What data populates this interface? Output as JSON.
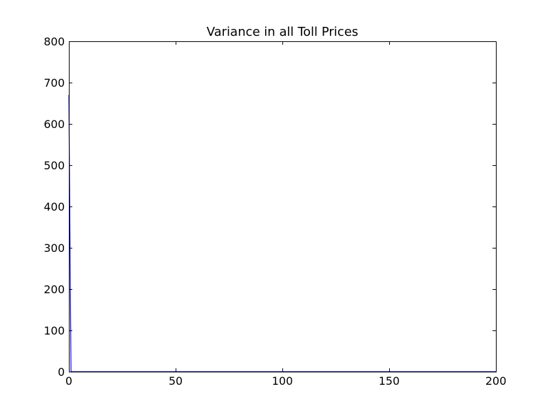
{
  "chart_data": {
    "type": "line",
    "title": "Variance in all Toll Prices",
    "xlabel": "",
    "ylabel": "",
    "xlim": [
      0,
      200
    ],
    "ylim": [
      0,
      800
    ],
    "grid": false,
    "x_ticks": [
      0,
      50,
      100,
      150,
      200
    ],
    "y_ticks": [
      0,
      100,
      200,
      300,
      400,
      500,
      600,
      700,
      800
    ],
    "series": [
      {
        "color": "#0000ff",
        "x": [
          0,
          1,
          2,
          3,
          4,
          5,
          10,
          20,
          40,
          60,
          80,
          100,
          120,
          140,
          160,
          180,
          200
        ],
        "y": [
          670,
          0,
          0,
          0,
          0,
          0,
          0,
          0,
          0,
          0,
          0,
          0,
          0,
          0,
          0,
          0,
          0
        ]
      }
    ]
  }
}
